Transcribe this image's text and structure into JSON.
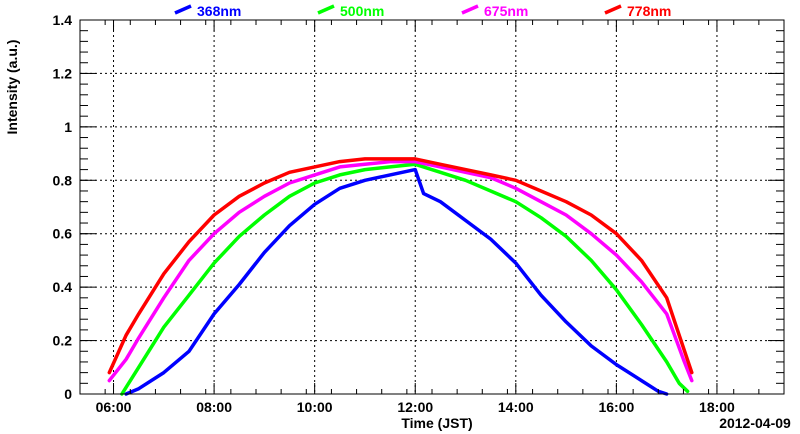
{
  "chart_data": {
    "type": "line",
    "xlabel": "Time (JST)",
    "ylabel": "Intensity (a.u.)",
    "date_label": "2012-04-09",
    "xlim": [
      "05:20",
      "19:20"
    ],
    "ylim": [
      0,
      1.4
    ],
    "x_ticks": [
      "06:00",
      "08:00",
      "10:00",
      "12:00",
      "14:00",
      "16:00",
      "18:00"
    ],
    "y_ticks": [
      "0",
      "0.2",
      "0.4",
      "0.6",
      "0.8",
      "1",
      "1.2",
      "1.4"
    ],
    "grid": true,
    "legend_position": "top",
    "series": [
      {
        "name": "368nm",
        "color": "#0000ff",
        "x": [
          "06:15",
          "06:30",
          "07:00",
          "07:30",
          "08:00",
          "08:30",
          "09:00",
          "09:30",
          "10:00",
          "10:30",
          "11:00",
          "11:30",
          "12:00",
          "12:10",
          "12:30",
          "13:00",
          "13:30",
          "14:00",
          "14:30",
          "15:00",
          "15:30",
          "16:00",
          "16:30",
          "16:50",
          "17:00"
        ],
        "y": [
          0.0,
          0.02,
          0.08,
          0.16,
          0.3,
          0.41,
          0.53,
          0.63,
          0.71,
          0.77,
          0.8,
          0.82,
          0.84,
          0.75,
          0.72,
          0.65,
          0.58,
          0.49,
          0.37,
          0.27,
          0.18,
          0.11,
          0.05,
          0.01,
          0.0
        ]
      },
      {
        "name": "500nm",
        "color": "#00ff00",
        "x": [
          "06:10",
          "06:30",
          "07:00",
          "07:30",
          "08:00",
          "08:30",
          "09:00",
          "09:30",
          "10:00",
          "10:30",
          "11:00",
          "11:30",
          "12:00",
          "12:30",
          "13:00",
          "13:30",
          "14:00",
          "14:30",
          "15:00",
          "15:30",
          "16:00",
          "16:30",
          "17:00",
          "17:15",
          "17:25"
        ],
        "y": [
          0.0,
          0.1,
          0.25,
          0.37,
          0.49,
          0.59,
          0.67,
          0.74,
          0.79,
          0.82,
          0.84,
          0.85,
          0.86,
          0.83,
          0.8,
          0.76,
          0.72,
          0.66,
          0.59,
          0.5,
          0.39,
          0.26,
          0.12,
          0.04,
          0.01
        ]
      },
      {
        "name": "675nm",
        "color": "#ff00ff",
        "x": [
          "05:55",
          "06:15",
          "06:30",
          "07:00",
          "07:30",
          "08:00",
          "08:30",
          "09:00",
          "09:30",
          "10:00",
          "10:30",
          "11:00",
          "11:30",
          "12:00",
          "12:30",
          "13:00",
          "13:30",
          "14:00",
          "14:30",
          "15:00",
          "15:30",
          "16:00",
          "16:30",
          "17:00",
          "17:20",
          "17:30"
        ],
        "y": [
          0.05,
          0.13,
          0.21,
          0.36,
          0.5,
          0.6,
          0.68,
          0.74,
          0.79,
          0.82,
          0.85,
          0.86,
          0.87,
          0.87,
          0.85,
          0.83,
          0.81,
          0.77,
          0.72,
          0.67,
          0.6,
          0.52,
          0.42,
          0.3,
          0.13,
          0.05
        ]
      },
      {
        "name": "778nm",
        "color": "#ff0000",
        "x": [
          "05:55",
          "06:15",
          "06:30",
          "07:00",
          "07:30",
          "08:00",
          "08:30",
          "09:00",
          "09:30",
          "10:00",
          "10:30",
          "11:00",
          "11:30",
          "12:00",
          "12:30",
          "13:00",
          "13:30",
          "14:00",
          "14:30",
          "15:00",
          "15:30",
          "16:00",
          "16:30",
          "17:00",
          "17:15",
          "17:30"
        ],
        "y": [
          0.08,
          0.22,
          0.3,
          0.45,
          0.57,
          0.67,
          0.74,
          0.79,
          0.83,
          0.85,
          0.87,
          0.88,
          0.88,
          0.88,
          0.86,
          0.84,
          0.82,
          0.8,
          0.76,
          0.72,
          0.67,
          0.6,
          0.5,
          0.36,
          0.22,
          0.08
        ]
      }
    ]
  }
}
